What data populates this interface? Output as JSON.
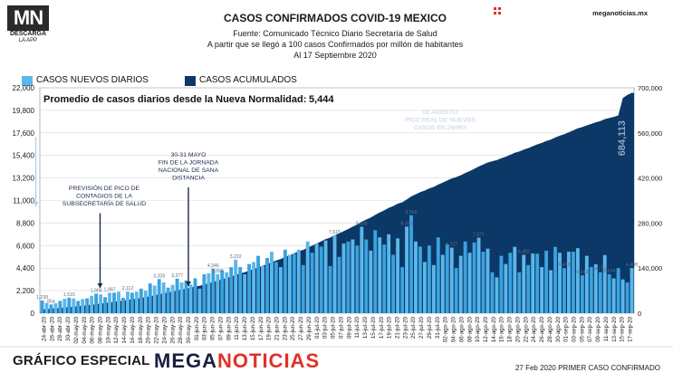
{
  "logo": {
    "mark": "MN",
    "line1": "DESCARGA",
    "line2": "LA APP"
  },
  "site": "meganoticias.mx",
  "header": {
    "title": "CASOS CONFIRMADOS COVID-19 MEXICO",
    "source": "Fuente: Comunicado Técnico Diario Secretaría de Salud",
    "note": "A partir que se llegó a 100 casos Confirmados por millón de habitantes",
    "date": "Al 17 Septiembre 2020"
  },
  "legend": {
    "daily": "CASOS NUEVOS DIARIOS",
    "cumulative": "CASOS ACUMULADOS"
  },
  "colors": {
    "daily": "#5cb7ea",
    "daily_dark": "#3aa2df",
    "cumulative": "#0b3866",
    "brand_red": "#e0302a"
  },
  "average": {
    "label": "Promedio de casos diarios desde la Nueva Normalidad:",
    "value": "5,444"
  },
  "annotations": [
    {
      "id": "pico-previsto",
      "lines": [
        "PREVISIÓN DE PICO DE",
        "CONTAGIOS DE LA",
        "SUBSECRETARÍA DE SALUD"
      ],
      "date": "08-may-20"
    },
    {
      "id": "fin-jornada",
      "lines": [
        "30-31 MAYO",
        "FIN DE LA JORNADA",
        "NACIONAL DE SANA",
        "DISTANCIA"
      ],
      "date": "30-may-20"
    },
    {
      "id": "pico-real",
      "lines": [
        "01 AGOSTO",
        "PICO REAL DE NUEVOS",
        "CASOS EN 24HRS"
      ],
      "date": "01-ago-20"
    }
  ],
  "chart_data": {
    "type": "bar",
    "left_axis_ticks": [
      "22,000",
      "19,800",
      "17,600",
      "15,400",
      "13,200",
      "11,000",
      "8,800",
      "6,600",
      "4,400",
      "2,200",
      "0"
    ],
    "right_axis_ticks": [
      "700,000",
      "560,000",
      "420,000",
      "280,000",
      "140,000",
      "0"
    ],
    "y_left_lim": [
      0,
      22000
    ],
    "y_right_lim": [
      0,
      700000
    ],
    "x_tick_labels": [
      "24-abr-20",
      "26-abr-20",
      "28-abr-20",
      "30-abr-20",
      "02-may-20",
      "04-may-20",
      "06-may-20",
      "08-may-20",
      "10-may-20",
      "12-may-20",
      "14-may-20",
      "16-may-20",
      "18-may-20",
      "20-may-20",
      "22-may-20",
      "24-may-20",
      "26-may-20",
      "28-may-20",
      "30-may-20",
      "01-jun-20",
      "03-jun-20",
      "05-jun-20",
      "07-jun-20",
      "09-jun-20",
      "11-jun-20",
      "13-jun-20",
      "15-jun-20",
      "17-jun-20",
      "19-jun-20",
      "21-jun-20",
      "23-jun-20",
      "25-jun-20",
      "27-jun-20",
      "29-jun-20",
      "01-jul-20",
      "03-jul-20",
      "05-jul-20",
      "07-jul-20",
      "09-jul-20",
      "11-jul-20",
      "13-jul-20",
      "15-jul-20",
      "17-jul-20",
      "19-jul-20",
      "21-jul-20",
      "23-jul-20",
      "25-jul-20",
      "27-jul-20",
      "29-jul-20",
      "31-jul-20",
      "02-ago-20",
      "04-ago-20",
      "06-ago-20",
      "08-ago-20",
      "10-ago-20",
      "12-ago-20",
      "14-ago-20",
      "16-ago-20",
      "18-ago-20",
      "20-ago-20",
      "22-ago-20",
      "24-ago-20",
      "26-ago-20",
      "28-ago-20",
      "30-ago-20",
      "01-sep-20",
      "03-sep-20",
      "05-sep-20",
      "07-sep-20",
      "09-sep-20",
      "11-sep-20",
      "13-sep-20",
      "15-sep-20",
      "17-sep-20"
    ],
    "series": [
      {
        "name": "CASOS NUEVOS DIARIOS",
        "kind": "bar",
        "axis": "left",
        "values": [
          1239,
          1000,
          854,
          975,
          1200,
          1410,
          1515,
          1434,
          1200,
          1383,
          1445,
          1700,
          1906,
          1830,
          1562,
          1997,
          2000,
          2100,
          1500,
          2112,
          2000,
          2100,
          2400,
          2200,
          2900,
          2700,
          3329,
          3000,
          2500,
          2764,
          3377,
          3000,
          3200,
          2800,
          3400,
          2400,
          3800,
          3891,
          4346,
          3800,
          4200,
          4000,
          4500,
          5222,
          4500,
          3800,
          4800,
          5000,
          5600,
          4600,
          5400,
          6000,
          5000,
          4500,
          6200,
          5700,
          5800,
          6200,
          4700,
          7000,
          5900,
          6800,
          6500,
          7100,
          4600,
          7615,
          5500,
          6800,
          7000,
          7200,
          6600,
          8438,
          7200,
          6100,
          8100,
          7400,
          6700,
          7700,
          5700,
          7300,
          4500,
          8458,
          9556,
          7000,
          6500,
          5000,
          6600,
          4700,
          7400,
          5700,
          6717,
          6400,
          4400,
          5600,
          7000,
          5900,
          6900,
          7371,
          6000,
          6300,
          4000,
          3500,
          5600,
          4800,
          5900,
          6482,
          4000,
          5700,
          4700,
          5825,
          5800,
          4500,
          6100,
          4200,
          6476,
          5900,
          4400,
          6000,
          6000,
          6349,
          3700,
          5600,
          4500,
          4771,
          4000,
          5674,
          3800,
          3400,
          4400,
          3300,
          3000,
          4408
        ],
        "labels": {
          "0": "1,239",
          "2": "854",
          "6": "1,515",
          "12": "1,906",
          "15": "1,997",
          "19": "2,112",
          "26": "3,329",
          "30": "3,377",
          "39": "3,891",
          "38": "4,346",
          "43": "5,222",
          "65": "7,615",
          "71": "8,438",
          "81": "8,458",
          "82": "9,556",
          "91": "6,717",
          "97": "7,371",
          "107": "6,482",
          "116": "6,476",
          "120": "6,349",
          "124": "4,771",
          "126": "5,674",
          "131": "4,408"
        }
      },
      {
        "name": "CASOS ACUMULADOS",
        "kind": "area",
        "axis": "right",
        "values": [
          12000,
          13000,
          13900,
          14900,
          16100,
          17500,
          19000,
          20500,
          21700,
          23100,
          24500,
          26200,
          28100,
          29900,
          31500,
          33500,
          35500,
          37600,
          39100,
          41200,
          43200,
          45300,
          47700,
          49900,
          52800,
          55500,
          58800,
          61800,
          64300,
          67100,
          70400,
          73400,
          76600,
          79400,
          82800,
          85200,
          89000,
          92900,
          97300,
          101100,
          105300,
          109300,
          113800,
          119000,
          123500,
          127300,
          132100,
          137100,
          142700,
          147300,
          152700,
          158700,
          163700,
          168200,
          174400,
          180100,
          185900,
          192100,
          196800,
          203800,
          209700,
          216500,
          223000,
          230100,
          234700,
          242300,
          247800,
          254600,
          261600,
          268800,
          275400,
          283800,
          291000,
          297100,
          305200,
          312600,
          319300,
          327000,
          332700,
          340000,
          344500,
          353000,
          362500,
          369500,
          376000,
          381000,
          387600,
          392300,
          399700,
          405400,
          412100,
          418500,
          422900,
          428500,
          435500,
          441400,
          448300,
          455700,
          461700,
          468000,
          472000,
          475500,
          481100,
          485900,
          491800,
          498300,
          502300,
          508000,
          512700,
          518500,
          524300,
          528800,
          534900,
          539100,
          545600,
          551500,
          555900,
          561900,
          567900,
          574200,
          577900,
          583500,
          588000,
          592800,
          596800,
          602500,
          606300,
          609700,
          614100,
          668000,
          678000,
          684113
        ]
      }
    ],
    "cumulative_final_label": "684,113"
  },
  "footer": {
    "left": "GRÁFICO ESPECIAL",
    "brand_a": "MEGA",
    "brand_b": "NOTICIAS",
    "right": "27 Feb 2020 PRIMER CASO CONFIRMADO"
  }
}
